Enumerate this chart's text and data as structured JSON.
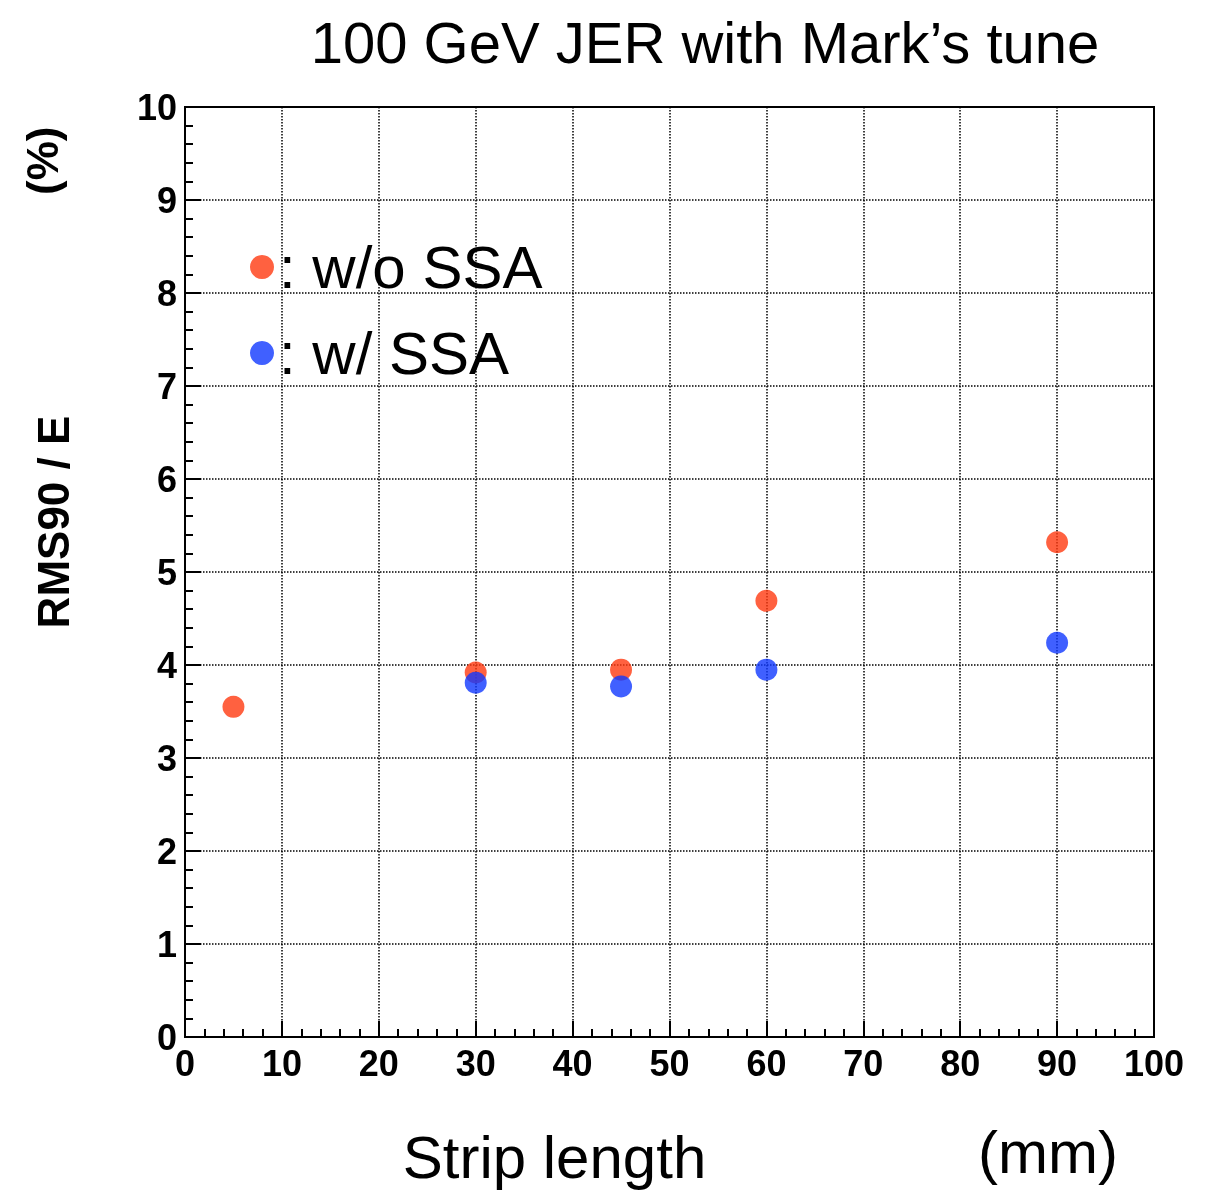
{
  "chart_data": {
    "type": "scatter",
    "title": "100 GeV JER with Mark’s tune",
    "xlabel": "Strip length",
    "ylabel": "RMS90 / E",
    "annotations": [
      "(mm)",
      "(%)"
    ],
    "xlim": [
      0,
      100
    ],
    "xticks": [
      0,
      10,
      20,
      30,
      40,
      50,
      60,
      70,
      80,
      90,
      100
    ],
    "ylim": [
      0,
      10
    ],
    "yticks": [
      0,
      1,
      2,
      3,
      4,
      5,
      6,
      7,
      8,
      9,
      10
    ],
    "grid": true,
    "legend": "top left",
    "marker": "circle",
    "series": [
      {
        "name": ": w/o SSA",
        "color": "#ff3a10",
        "x": [
          5,
          30,
          45,
          60,
          90
        ],
        "values": [
          3.55,
          3.92,
          3.95,
          4.69,
          5.32
        ]
      },
      {
        "name": ": w/ SSA",
        "color": "#1038ff",
        "x": [
          30,
          45,
          60,
          90
        ],
        "values": [
          3.81,
          3.77,
          3.95,
          4.24
        ]
      }
    ]
  }
}
